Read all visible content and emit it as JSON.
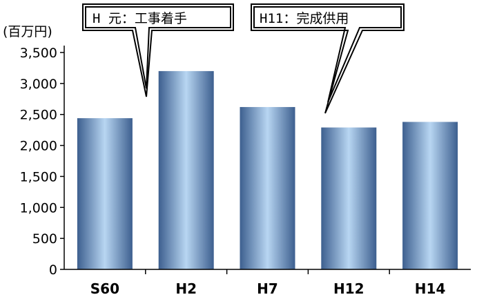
{
  "chart_data": {
    "type": "bar",
    "categories": [
      "S60",
      "H2",
      "H7",
      "H12",
      "H14"
    ],
    "values": [
      2440,
      3200,
      2620,
      2290,
      2380
    ],
    "ylim": [
      0,
      3500
    ],
    "yticks": [
      0,
      500,
      1000,
      1500,
      2000,
      2500,
      3000,
      3500
    ],
    "ytick_labels": [
      "0",
      "500",
      "1,000",
      "1,500",
      "2,000",
      "2,500",
      "3,000",
      "3,500"
    ],
    "unit_label": "(百万円)",
    "annotations": [
      {
        "text": "H 元：工事着手"
      },
      {
        "text": "H11：完成供用"
      }
    ],
    "grid": false,
    "bar_color": "#6f9fd0"
  }
}
